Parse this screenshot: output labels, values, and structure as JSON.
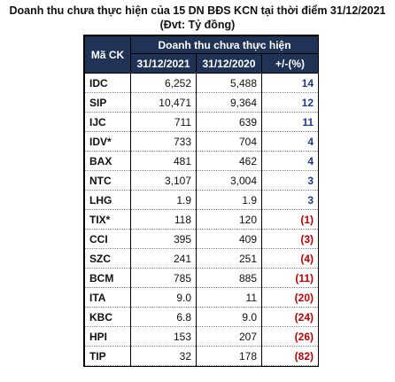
{
  "header": {
    "title": "Doanh thu chưa thực hiện của 15 DN BĐS KCN tại thời điểm 31/12/2021",
    "unit": "(Đvt: Tỷ đồng)"
  },
  "table": {
    "col_code": "Mã CK",
    "group_header": "Doanh thu chưa thực hiện",
    "col_2021": "31/12/2021",
    "col_2020": "31/12/2020",
    "col_change": "+/-(%)",
    "rows": [
      {
        "code": "IDC",
        "v2021": "6,252",
        "v2020": "5,488",
        "change": "14",
        "negative": false
      },
      {
        "code": "SIP",
        "v2021": "10,471",
        "v2020": "9,364",
        "change": "12",
        "negative": false
      },
      {
        "code": "IJC",
        "v2021": "711",
        "v2020": "639",
        "change": "11",
        "negative": false
      },
      {
        "code": "IDV*",
        "v2021": "733",
        "v2020": "704",
        "change": "4",
        "negative": false
      },
      {
        "code": "BAX",
        "v2021": "481",
        "v2020": "462",
        "change": "4",
        "negative": false
      },
      {
        "code": "NTC",
        "v2021": "3,107",
        "v2020": "3,004",
        "change": "3",
        "negative": false
      },
      {
        "code": "LHG",
        "v2021": "1.9",
        "v2020": "1.9",
        "change": "3",
        "negative": false
      },
      {
        "code": "TIX*",
        "v2021": "118",
        "v2020": "120",
        "change": "(1)",
        "negative": true
      },
      {
        "code": "CCI",
        "v2021": "395",
        "v2020": "409",
        "change": "(3)",
        "negative": true
      },
      {
        "code": "SZC",
        "v2021": "241",
        "v2020": "251",
        "change": "(4)",
        "negative": true
      },
      {
        "code": "BCM",
        "v2021": "785",
        "v2020": "885",
        "change": "(11)",
        "negative": true
      },
      {
        "code": "ITA",
        "v2021": "9.0",
        "v2020": "11",
        "change": "(20)",
        "negative": true
      },
      {
        "code": "KBC",
        "v2021": "6.8",
        "v2020": "9.0",
        "change": "(24)",
        "negative": true
      },
      {
        "code": "HPI",
        "v2021": "153",
        "v2020": "207",
        "change": "(26)",
        "negative": true
      },
      {
        "code": "TIP",
        "v2021": "32",
        "v2020": "178",
        "change": "(82)",
        "negative": true
      }
    ]
  },
  "colors": {
    "header_bg": "#1f3356",
    "positive_text": "#1f3a8a",
    "negative_text": "#c00000"
  }
}
